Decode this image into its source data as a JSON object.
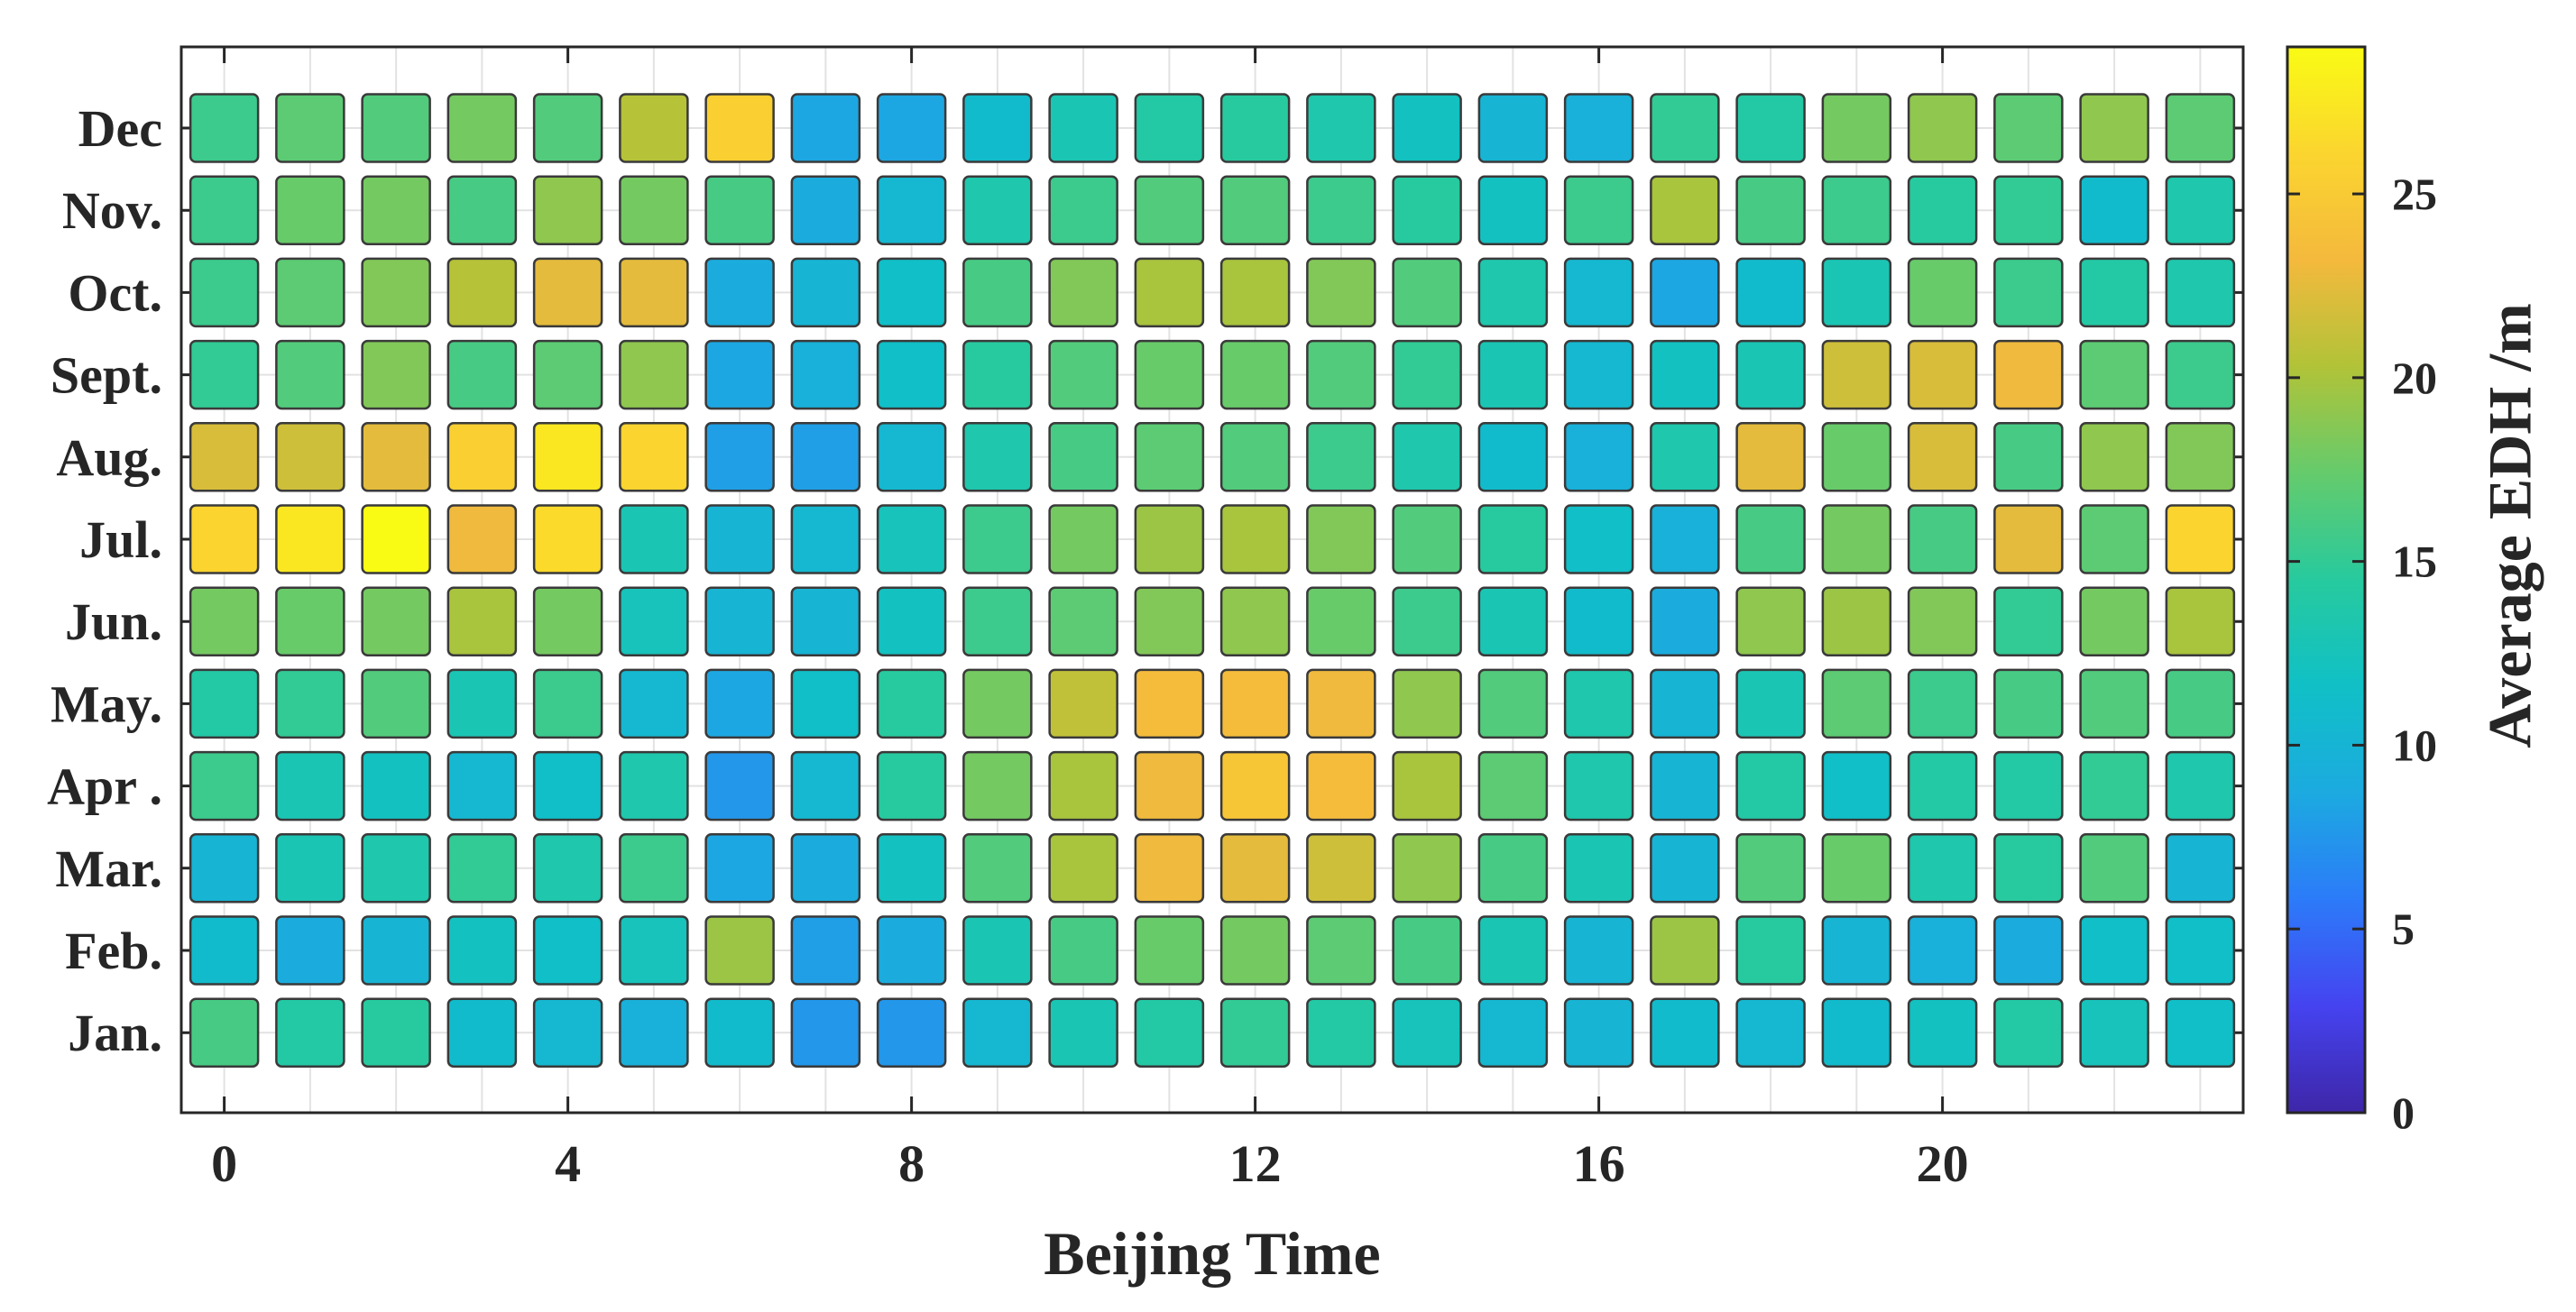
{
  "chart_data": {
    "type": "heatmap",
    "xlabel": "Beijing Time",
    "colorbar_label": "Average EDH /m",
    "x": [
      0,
      1,
      2,
      3,
      4,
      5,
      6,
      7,
      8,
      9,
      10,
      11,
      12,
      13,
      14,
      15,
      16,
      17,
      18,
      19,
      20,
      21,
      22,
      23
    ],
    "x_ticks": [
      0,
      4,
      8,
      12,
      16,
      20
    ],
    "xlim": [
      -0.5,
      23.5
    ],
    "y_categories": [
      "Jan.",
      "Feb.",
      "Mar.",
      "Apr .",
      "May.",
      "Jun.",
      "Jul.",
      "Aug.",
      "Sept.",
      "Oct.",
      "Nov.",
      "Dec"
    ],
    "colorbar_range": [
      0,
      29
    ],
    "colorbar_ticks": [
      0,
      5,
      10,
      15,
      20,
      25
    ],
    "colormap": [
      "#3e26a8",
      "#4543f0",
      "#2c7bf9",
      "#1caae0",
      "#10c0c6",
      "#27ca9e",
      "#65cb6c",
      "#b1c338",
      "#f4b93d",
      "#fbd52f",
      "#f9fb14"
    ],
    "grid": true,
    "values": [
      [
        16,
        14,
        14.5,
        11,
        10.5,
        9.5,
        11,
        7.5,
        7.5,
        10.5,
        13,
        14,
        15,
        14,
        12.5,
        10.5,
        10,
        11,
        10.5,
        11,
        12,
        14,
        12.5,
        11.5
      ],
      [
        11,
        9,
        10,
        12,
        11.5,
        12.5,
        19.5,
        8,
        9,
        13,
        16,
        17.5,
        18,
        17,
        16,
        13,
        10,
        19.5,
        14.5,
        10,
        9.5,
        9,
        11.5,
        11.5
      ],
      [
        10,
        13,
        13.5,
        15,
        13.5,
        15.5,
        8.5,
        9,
        12,
        16.5,
        20,
        23,
        22.5,
        21.5,
        19,
        16,
        13,
        10,
        16.5,
        17.5,
        13.5,
        14.5,
        16.5,
        10
      ],
      [
        15.5,
        13,
        12,
        10.5,
        11.5,
        13.5,
        7.5,
        10.5,
        14.5,
        18,
        20,
        23,
        24.5,
        23.5,
        20,
        17,
        13.5,
        10,
        14,
        11.5,
        14,
        14,
        15,
        13.5
      ],
      [
        14,
        15,
        16.5,
        13,
        15.5,
        10.5,
        8.5,
        11.5,
        14.5,
        18,
        21,
        23.5,
        23.5,
        23,
        19,
        16.5,
        13.5,
        10,
        13,
        17,
        15.5,
        16,
        16.5,
        16
      ],
      [
        18,
        17.5,
        18,
        20,
        18,
        12.5,
        10,
        10,
        12,
        15.5,
        17,
        18.5,
        19,
        17.5,
        15.5,
        13,
        11,
        9,
        19,
        19.5,
        18.5,
        15,
        18,
        20
      ],
      [
        26,
        27.5,
        29,
        23,
        26.5,
        13,
        10,
        10.5,
        12.5,
        15.5,
        18,
        19.5,
        20,
        18.5,
        16.5,
        14.5,
        11.5,
        9.5,
        16,
        18,
        16,
        22.5,
        17,
        26
      ],
      [
        22,
        21.5,
        22.5,
        25.5,
        27.5,
        26,
        8,
        8,
        10.5,
        13.5,
        16,
        17,
        16.5,
        15.5,
        13.5,
        11,
        9.5,
        13.5,
        22.5,
        17.5,
        22,
        16,
        19,
        18.5
      ],
      [
        15,
        16.5,
        18.5,
        16,
        17,
        19,
        8.5,
        9.5,
        11.5,
        14.5,
        16.5,
        17.5,
        17.5,
        16.5,
        15,
        13,
        10.5,
        12,
        13,
        21.5,
        22,
        23,
        17,
        15.5
      ],
      [
        15.5,
        17,
        18.5,
        20.5,
        22.5,
        22.5,
        9,
        10,
        11.5,
        16,
        18.5,
        20,
        20,
        18.5,
        16.5,
        13.5,
        10.5,
        8.5,
        11,
        13,
        17.5,
        15.5,
        14,
        13.5
      ],
      [
        15.5,
        17.5,
        18,
        16,
        19,
        18,
        16,
        9,
        10.5,
        13.5,
        15.5,
        16.5,
        16.5,
        15.5,
        14.5,
        12,
        15.5,
        20,
        16,
        15.5,
        14.5,
        15,
        11,
        13.5
      ],
      [
        15.5,
        17,
        16.5,
        18,
        16.5,
        20.5,
        25.5,
        8.5,
        8.5,
        11,
        13,
        14,
        14.5,
        13.5,
        12,
        10,
        9.5,
        15,
        14,
        18,
        19,
        17,
        19,
        17
      ]
    ]
  }
}
